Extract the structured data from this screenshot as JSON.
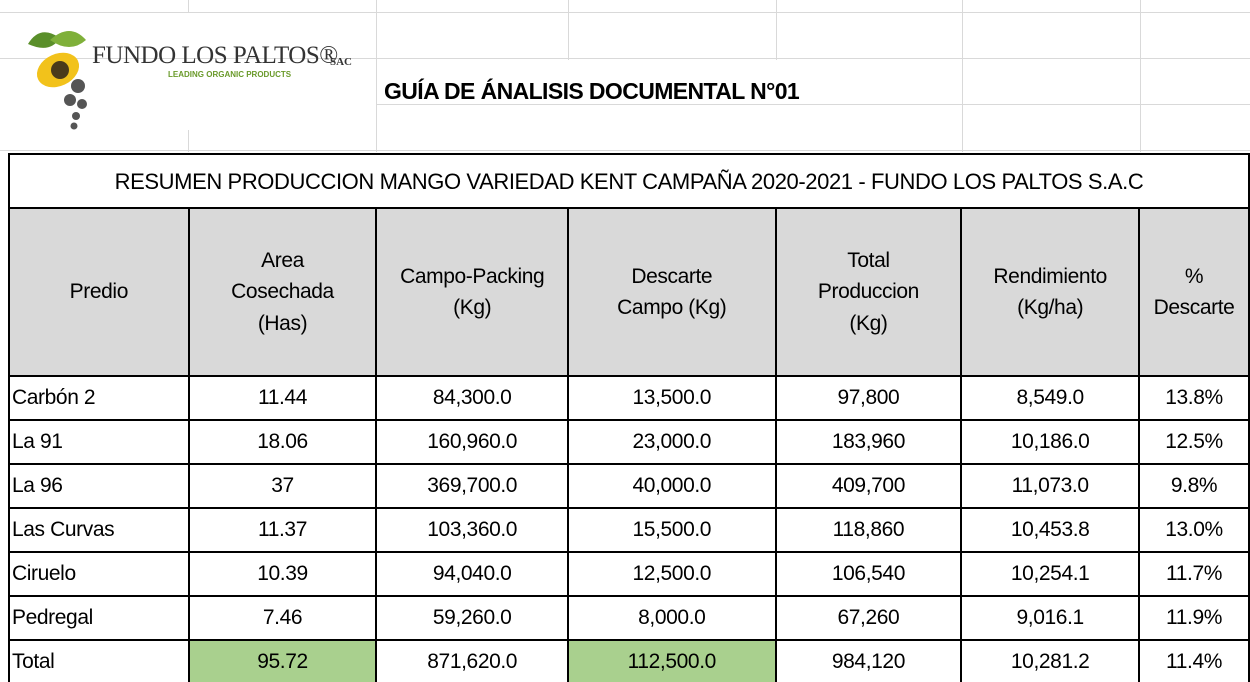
{
  "header": {
    "brand": "FUNDO LOS PALTOS®",
    "brand_suffix": "SAC",
    "tagline": "LEADING ORGANIC PRODUCTS",
    "title": "GUÍA DE ÁNALISIS DOCUMENTAL N°01"
  },
  "table": {
    "title": "RESUMEN PRODUCCION MANGO VARIEDAD KENT CAMPAÑA 2020-2021 - FUNDO LOS PALTOS S.A.C",
    "columns": [
      "Predio",
      "Area\nCosechada\n(Has)",
      "Campo-Packing\n(Kg)",
      "Descarte\nCampo (Kg)",
      "Total\nProduccion\n(Kg)",
      "Rendimiento\n(Kg/ha)",
      "%\nDescarte"
    ],
    "rows": [
      [
        "Carbón 2",
        "11.44",
        "84,300.0",
        "13,500.0",
        "97,800",
        "8,549.0",
        "13.8%"
      ],
      [
        "La 91",
        "18.06",
        "160,960.0",
        "23,000.0",
        "183,960",
        "10,186.0",
        "12.5%"
      ],
      [
        "La 96",
        "37",
        "369,700.0",
        "40,000.0",
        "409,700",
        "11,073.0",
        "9.8%"
      ],
      [
        "Las Curvas",
        "11.37",
        "103,360.0",
        "15,500.0",
        "118,860",
        "10,453.8",
        "13.0%"
      ],
      [
        "Ciruelo",
        "10.39",
        "94,040.0",
        "12,500.0",
        "106,540",
        "10,254.1",
        "11.7%"
      ],
      [
        "Pedregal",
        "7.46",
        "59,260.0",
        "8,000.0",
        "67,260",
        "9,016.1",
        "11.9%"
      ],
      [
        "Total",
        "95.72",
        "871,620.0",
        "112,500.0",
        "984,120",
        "10,281.2",
        "11.4%"
      ]
    ]
  }
}
